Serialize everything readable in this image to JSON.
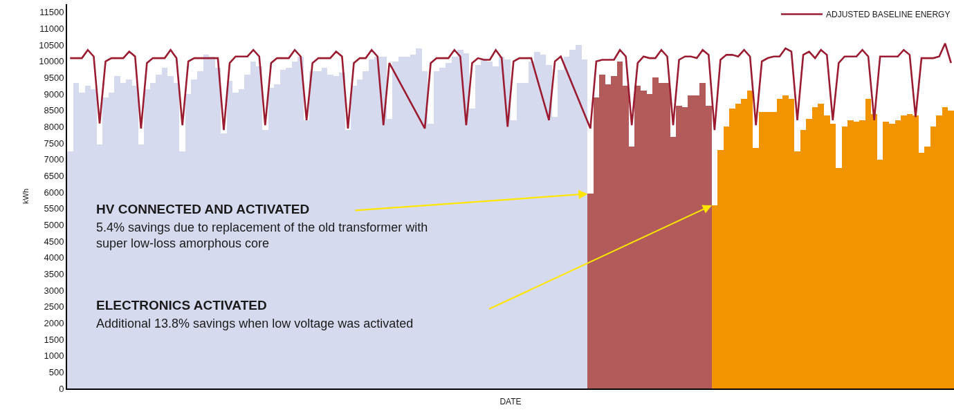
{
  "chart_data": {
    "type": "bar",
    "xlabel": "DATE",
    "ylabel": "kWh",
    "ylim": [
      0,
      11750
    ],
    "yticks": [
      0,
      500,
      1000,
      1500,
      2000,
      2500,
      3000,
      3500,
      4000,
      4500,
      5000,
      5500,
      6000,
      6500,
      7000,
      7500,
      8000,
      8500,
      9000,
      9500,
      10000,
      10500,
      11000,
      11500
    ],
    "legend": "top right",
    "tick_labels": "y",
    "categories": [
      null,
      null,
      null,
      null,
      null,
      null,
      null,
      null,
      null,
      null,
      null,
      null,
      null,
      null,
      null,
      null,
      null,
      null,
      null,
      null,
      null,
      null,
      null,
      null,
      null,
      null,
      null,
      null,
      null,
      null,
      null,
      null,
      null,
      null,
      null,
      null,
      null,
      null,
      null,
      null,
      null,
      null,
      null,
      null,
      null,
      null,
      null,
      null,
      null,
      null,
      null,
      null,
      null,
      null,
      null,
      null,
      null,
      null,
      null,
      null,
      null,
      null,
      null,
      null,
      null,
      null,
      null,
      null,
      null,
      null,
      null,
      null,
      null,
      null,
      null,
      null,
      null,
      null,
      null,
      null,
      null,
      null,
      null,
      null,
      null,
      null,
      null,
      null,
      null,
      null,
      null,
      null,
      null,
      null,
      null,
      null,
      null,
      null,
      null,
      null,
      null,
      null,
      null,
      null,
      null,
      null,
      null,
      null,
      null,
      null,
      null,
      null,
      null,
      null,
      null,
      null,
      null,
      null,
      null,
      null,
      null,
      null,
      null,
      null,
      null,
      null,
      null,
      null,
      null,
      null,
      null,
      null,
      null,
      null,
      null,
      null,
      null,
      null,
      null,
      null,
      null,
      null,
      null,
      null,
      null,
      null,
      null,
      null,
      null,
      null
    ],
    "series": [
      {
        "color": "#d6daee",
        "values": [
          7250,
          9350,
          9050,
          9250,
          9150,
          7450,
          8900,
          9050,
          9550,
          9350,
          9450,
          9250,
          7450,
          9150,
          9350,
          9600,
          9800,
          9550,
          9350,
          7250,
          9000,
          9450,
          9700,
          10200,
          10150,
          9800,
          7800,
          9400,
          9050,
          9150,
          9600,
          10000,
          9850,
          7900,
          9200,
          9300,
          9750,
          9800,
          10000,
          10150,
          8200,
          9700,
          9700,
          9800,
          9600,
          9550,
          9650,
          7900,
          9250,
          9450,
          9700,
          10050,
          10150,
          10150,
          8250,
          10000,
          10150,
          10150,
          10200,
          10400,
          9700,
          8100,
          9700,
          9800,
          9950,
          10150,
          10350,
          10250,
          8550,
          9900,
          10050,
          10000,
          9850,
          10150,
          10050,
          8200,
          9350,
          9350,
          10000,
          10300,
          10200,
          9900,
          8300,
          9750,
          10150,
          10350,
          10500,
          10050,
          null,
          null,
          null,
          null,
          null,
          null,
          null,
          null,
          null,
          null,
          null,
          null,
          null,
          null,
          null,
          null,
          null,
          null,
          null,
          null,
          null,
          null,
          null,
          null,
          null,
          null,
          null,
          null,
          null,
          null,
          null,
          null,
          null,
          null,
          null,
          null,
          null,
          null,
          null,
          null,
          null,
          null,
          null,
          null,
          null,
          null,
          null,
          null,
          null,
          null,
          null,
          null,
          null,
          null,
          null,
          null,
          null,
          null,
          null,
          null,
          null,
          null
        ]
      },
      {
        "color": "#b35a5a",
        "values": [
          null,
          null,
          null,
          null,
          null,
          null,
          null,
          null,
          null,
          null,
          null,
          null,
          null,
          null,
          null,
          null,
          null,
          null,
          null,
          null,
          null,
          null,
          null,
          null,
          null,
          null,
          null,
          null,
          null,
          null,
          null,
          null,
          null,
          null,
          null,
          null,
          null,
          null,
          null,
          null,
          null,
          null,
          null,
          null,
          null,
          null,
          null,
          null,
          null,
          null,
          null,
          null,
          null,
          null,
          null,
          null,
          null,
          null,
          null,
          null,
          null,
          null,
          null,
          null,
          null,
          null,
          null,
          null,
          null,
          null,
          null,
          null,
          null,
          null,
          null,
          null,
          null,
          null,
          null,
          null,
          null,
          null,
          null,
          null,
          null,
          null,
          null,
          null,
          5950,
          8900,
          9600,
          9300,
          9550,
          10000,
          9250,
          7400,
          9250,
          9100,
          9000,
          9500,
          9350,
          9350,
          7700,
          8650,
          8600,
          8950,
          8950,
          9350,
          8650,
          null,
          null,
          null,
          null,
          null,
          null,
          null,
          null,
          null,
          null,
          null,
          null,
          null,
          null,
          null,
          null,
          null,
          null,
          null,
          null,
          null,
          null,
          null,
          null,
          null,
          null,
          null,
          null,
          null,
          null,
          null,
          null,
          null,
          null,
          null,
          null,
          null,
          null,
          null,
          null,
          null
        ]
      },
      {
        "color": "#f29400",
        "values": [
          null,
          null,
          null,
          null,
          null,
          null,
          null,
          null,
          null,
          null,
          null,
          null,
          null,
          null,
          null,
          null,
          null,
          null,
          null,
          null,
          null,
          null,
          null,
          null,
          null,
          null,
          null,
          null,
          null,
          null,
          null,
          null,
          null,
          null,
          null,
          null,
          null,
          null,
          null,
          null,
          null,
          null,
          null,
          null,
          null,
          null,
          null,
          null,
          null,
          null,
          null,
          null,
          null,
          null,
          null,
          null,
          null,
          null,
          null,
          null,
          null,
          null,
          null,
          null,
          null,
          null,
          null,
          null,
          null,
          null,
          null,
          null,
          null,
          null,
          null,
          null,
          null,
          null,
          null,
          null,
          null,
          null,
          null,
          null,
          null,
          null,
          null,
          null,
          null,
          null,
          null,
          null,
          null,
          null,
          null,
          null,
          null,
          null,
          null,
          null,
          null,
          null,
          null,
          null,
          null,
          null,
          null,
          null,
          null,
          5600,
          7300,
          8000,
          8550,
          8700,
          8850,
          9100,
          7350,
          8450,
          8450,
          8450,
          8850,
          8950,
          8850,
          7250,
          7900,
          8250,
          8600,
          8700,
          8350,
          8100,
          6750,
          8000,
          8200,
          8150,
          8200,
          8850,
          8400,
          7000,
          8150,
          8100,
          8200,
          8350,
          8400,
          8350,
          7200,
          7400,
          8000,
          8350,
          8600,
          8500
        ]
      },
      {
        "type": "line",
        "name": "ADJUSTED BASELINE ENERGY",
        "color": "#9b1b30",
        "values": [
          10100,
          10100,
          10100,
          10350,
          10150,
          8100,
          10000,
          10100,
          10100,
          10100,
          10300,
          10150,
          7950,
          9950,
          10100,
          10100,
          10100,
          10350,
          10100,
          8050,
          10000,
          10100,
          10100,
          10100,
          10100,
          10100,
          7900,
          9950,
          10150,
          10150,
          10150,
          10350,
          10150,
          8050,
          9950,
          10100,
          10100,
          10100,
          10350,
          10150,
          8200,
          9950,
          10100,
          10100,
          10100,
          10300,
          10150,
          7950,
          9950,
          10100,
          10100,
          10350,
          10150,
          8050,
          9950,
          null,
          null,
          null,
          null,
          null,
          7950,
          9950,
          10100,
          10100,
          10100,
          10350,
          10150,
          8050,
          9950,
          10100,
          10050,
          10050,
          10350,
          10100,
          8000,
          10000,
          10100,
          10100,
          10100,
          null,
          null,
          8200,
          10000,
          10150,
          null,
          null,
          null,
          null,
          7950,
          10000,
          10050,
          10050,
          10050,
          10350,
          10150,
          8050,
          9950,
          10150,
          10100,
          10100,
          10350,
          10150,
          8050,
          10050,
          10150,
          10150,
          10100,
          10350,
          10200,
          7900,
          10050,
          10200,
          10200,
          10150,
          10350,
          10150,
          8050,
          10000,
          10100,
          10150,
          10150,
          10400,
          10300,
          8200,
          10200,
          10300,
          10100,
          10350,
          10200,
          8200,
          9950,
          10150,
          10150,
          10150,
          10350,
          10150,
          8200,
          10150,
          10150,
          10150,
          10150,
          10350,
          10200,
          8300,
          10100,
          10100,
          10100,
          10150,
          10550,
          9950
        ]
      }
    ],
    "annotations": [
      "HV CONNECTED AND ACTIVATED",
      "5.4% savings due to replacement of the old transformer with\nsuper low-loss amorphous core",
      "ELECTRONICS ACTIVATED",
      "Additional 13.8% savings when low voltage was activated"
    ]
  }
}
